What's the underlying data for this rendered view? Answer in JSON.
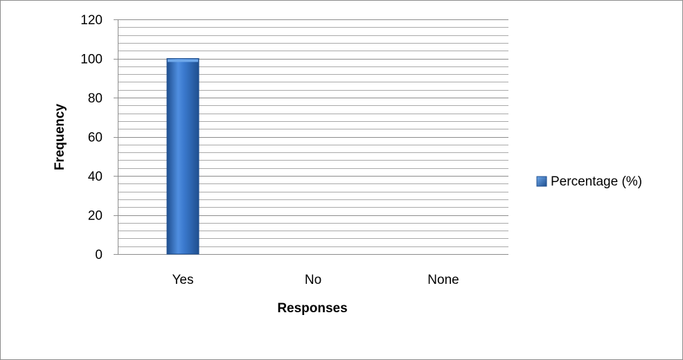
{
  "chart_data": {
    "type": "bar",
    "categories": [
      "Yes",
      "No",
      "None"
    ],
    "series": [
      {
        "name": "Percentage (%)",
        "values": [
          100,
          0,
          0
        ]
      }
    ],
    "xlabel": "Responses",
    "ylabel": "Frequency",
    "ylim": [
      0,
      120
    ],
    "yticks": [
      "0",
      "20",
      "40",
      "60",
      "80",
      "100",
      "120"
    ],
    "grid": true,
    "legend_position": "right",
    "colors": {
      "bar": "#2f6fc4",
      "bar_light": "#6fa8ea",
      "bar_dark": "#1f4f8f",
      "grid": "#8c8c8c"
    }
  }
}
